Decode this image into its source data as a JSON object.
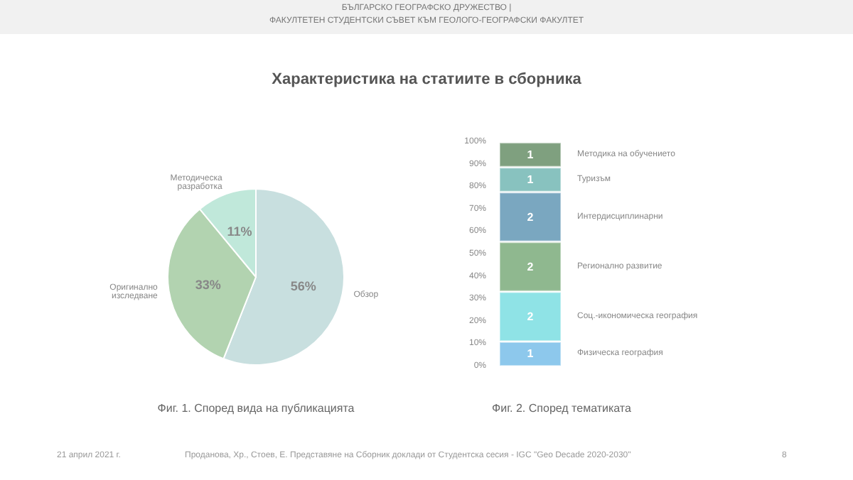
{
  "chart_data": [
    {
      "type": "pie",
      "title": "Характеристика на статиите в сборника",
      "categories": [
        "Обзор",
        "Оригинално изследване",
        "Методическа разработка"
      ],
      "values": [
        56,
        33,
        11
      ],
      "value_labels": [
        "56%",
        "33%",
        "11%"
      ],
      "colors": [
        "#c8dfdf",
        "#b2d3b0",
        "#c0e8da"
      ],
      "legend": false,
      "annotations": [
        "БЪЛГАРСКО ГЕОГРАФСКО ДРУЖЕСТВО |",
        "ФАКУЛТЕТЕН СТУДЕНТСКИ СЪВЕТ КЪМ ГЕОЛОГО-ГЕОГРАФСКИ ФАКУЛТЕТ",
        "Фиг. 1. Според вида на публикацията",
        "21 април 2021 г.",
        "Проданова, Хр., Стоев, Е. Представяне на Сборник доклади от Студентска сесия - IGC \"Geo Decade 2020-2030\"",
        "8"
      ]
    },
    {
      "type": "bar",
      "stacked": true,
      "categories": [
        null
      ],
      "series": [
        {
          "name": "Физическа география",
          "color": "#8dc8ec",
          "values": [
            11.1
          ]
        },
        {
          "name": "Соц.-икономическа география",
          "color": "#8fe3e6",
          "values": [
            22.2
          ]
        },
        {
          "name": "Регионално развитие",
          "color": "#8fb88f",
          "values": [
            22.2
          ]
        },
        {
          "name": "Интердисциплинарни",
          "color": "#7aa7c0",
          "values": [
            22.2
          ]
        },
        {
          "name": "Туризъм",
          "color": "#88c2bf",
          "values": [
            11.1
          ]
        },
        {
          "name": "Методика на обучението",
          "color": "#7fa07f",
          "values": [
            11.1
          ]
        }
      ],
      "ylim": [
        0,
        100
      ],
      "yticks": [
        {
          "value": 0,
          "label": "0%"
        },
        {
          "value": 10,
          "label": "10%"
        },
        {
          "value": 20,
          "label": "20%"
        },
        {
          "value": 30,
          "label": "30%"
        },
        {
          "value": 40,
          "label": "40%"
        },
        {
          "value": 50,
          "label": "50%"
        },
        {
          "value": 60,
          "label": "60%"
        },
        {
          "value": 70,
          "label": "70%"
        },
        {
          "value": 80,
          "label": "80%"
        },
        {
          "value": 90,
          "label": "90%"
        },
        {
          "value": 100,
          "label": "100%"
        }
      ],
      "grid": false,
      "legend": false,
      "annotations": [
        "Фиг. 2. Според тематиката",
        "1",
        "2",
        "2",
        "2",
        "1",
        "1"
      ]
    }
  ]
}
